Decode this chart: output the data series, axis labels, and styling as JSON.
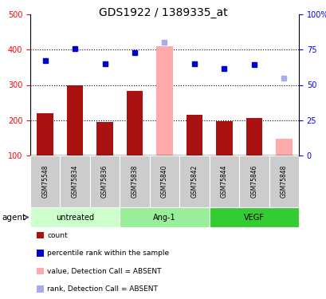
{
  "title": "GDS1922 / 1389335_at",
  "samples": [
    "GSM75548",
    "GSM75834",
    "GSM75836",
    "GSM75838",
    "GSM75840",
    "GSM75842",
    "GSM75844",
    "GSM75846",
    "GSM75848"
  ],
  "bar_values": [
    220,
    300,
    195,
    283,
    410,
    215,
    197,
    207,
    147
  ],
  "bar_absent": [
    false,
    false,
    false,
    false,
    true,
    false,
    false,
    false,
    true
  ],
  "rank_values": [
    370,
    403,
    360,
    392,
    420,
    360,
    347,
    357,
    320
  ],
  "rank_absent": [
    false,
    false,
    false,
    false,
    true,
    false,
    false,
    false,
    true
  ],
  "bar_color_present": "#aa1111",
  "bar_color_absent": "#ffaaaa",
  "rank_color_present": "#0000cc",
  "rank_color_absent": "#aaaaee",
  "ylim_left": [
    100,
    500
  ],
  "ylim_right": [
    0,
    100
  ],
  "yticks_left": [
    100,
    200,
    300,
    400,
    500
  ],
  "yticks_right": [
    0,
    25,
    50,
    75,
    100
  ],
  "yticklabels_right": [
    "0",
    "25",
    "50",
    "75",
    "100%"
  ],
  "groups": [
    {
      "label": "untreated",
      "indices": [
        0,
        1,
        2
      ],
      "color": "#ccffcc"
    },
    {
      "label": "Ang-1",
      "indices": [
        3,
        4,
        5
      ],
      "color": "#99ee99"
    },
    {
      "label": "VEGF",
      "indices": [
        6,
        7,
        8
      ],
      "color": "#33cc33"
    }
  ],
  "agent_label": "agent",
  "legend_items": [
    {
      "label": "count",
      "color": "#aa1111"
    },
    {
      "label": "percentile rank within the sample",
      "color": "#0000cc"
    },
    {
      "label": "value, Detection Call = ABSENT",
      "color": "#ffaaaa"
    },
    {
      "label": "rank, Detection Call = ABSENT",
      "color": "#aaaaee"
    }
  ],
  "bar_width": 0.55,
  "title_fontsize": 10,
  "tick_fontsize": 7,
  "label_fontsize": 7
}
